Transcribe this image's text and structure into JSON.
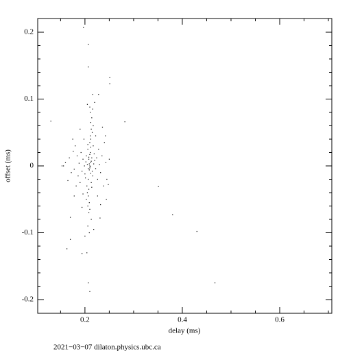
{
  "chart_data": {
    "type": "scatter",
    "x_label": "delay (ms)",
    "y_label": "offset (ms)",
    "footer": "2021−03−07  dilaton.physics.ubc.ca",
    "color": "#000000",
    "xlim": [
      0.103,
      0.707
    ],
    "ylim": [
      -0.2205,
      0.2205
    ],
    "xticks": [
      0.2,
      0.4,
      0.6
    ],
    "yticks": [
      -0.2,
      -0.1,
      0,
      0.1,
      0.2
    ],
    "xminorticks": [
      0.15,
      0.25,
      0.3,
      0.35,
      0.45,
      0.5,
      0.55,
      0.65,
      0.7
    ],
    "yminorticks": [
      -0.18,
      -0.16,
      -0.14,
      -0.12,
      -0.08,
      -0.06,
      -0.04,
      -0.02,
      0.02,
      0.04,
      0.06,
      0.08,
      0.12,
      0.14,
      0.16,
      0.18
    ],
    "x": [
      0.205,
      0.21,
      0.212,
      0.208,
      0.215,
      0.203,
      0.218,
      0.2,
      0.211,
      0.207,
      0.214,
      0.209,
      0.202,
      0.216,
      0.206,
      0.213,
      0.199,
      0.22,
      0.204,
      0.217,
      0.21,
      0.208,
      0.222,
      0.196,
      0.212,
      0.205,
      0.219,
      0.201,
      0.224,
      0.194,
      0.211,
      0.207,
      0.226,
      0.192,
      0.215,
      0.203,
      0.228,
      0.19,
      0.213,
      0.209,
      0.23,
      0.188,
      0.217,
      0.206,
      0.232,
      0.186,
      0.212,
      0.21,
      0.235,
      0.184,
      0.214,
      0.208,
      0.238,
      0.182,
      0.211,
      0.213,
      0.24,
      0.18,
      0.21,
      0.206,
      0.243,
      0.178,
      0.216,
      0.209,
      0.245,
      0.176,
      0.222,
      0.198,
      0.226,
      0.196,
      0.172,
      0.168,
      0.165,
      0.16,
      0.156,
      0.25,
      0.248,
      0.236,
      0.19,
      0.232,
      0.194,
      0.175,
      0.178,
      0.242,
      0.244,
      0.22,
      0.205,
      0.218,
      0.2,
      0.212,
      0.214,
      0.206,
      0.21,
      0.209,
      0.211,
      0.207,
      0.213,
      0.208,
      0.212,
      0.21,
      0.197,
      0.207,
      0.207,
      0.251,
      0.251,
      0.13,
      0.282,
      0.351,
      0.38,
      0.43,
      0.467,
      0.207,
      0.21,
      0.163,
      0.17,
      0.194,
      0.204,
      0.231,
      0.17,
      0.153,
      0.216,
      0.228
    ],
    "values": [
      0.002,
      -0.003,
      0.005,
      0.01,
      -0.008,
      0.015,
      0.003,
      -0.012,
      0.02,
      -0.02,
      0.012,
      -0.006,
      0.006,
      -0.015,
      0.025,
      -0.025,
      0.0,
      0.008,
      -0.03,
      0.03,
      0.035,
      -0.035,
      -0.004,
      0.01,
      0.04,
      -0.04,
      0.018,
      -0.018,
      0.012,
      -0.008,
      0.045,
      -0.045,
      -0.02,
      0.02,
      0.05,
      -0.05,
      0.025,
      -0.025,
      0.055,
      -0.055,
      0.002,
      0.004,
      0.06,
      -0.06,
      -0.01,
      -0.015,
      0.065,
      -0.065,
      0.015,
      0.015,
      0.072,
      -0.07,
      -0.03,
      -0.03,
      0.08,
      -0.08,
      0.035,
      0.03,
      0.088,
      -0.09,
      0.005,
      -0.005,
      0.085,
      -0.1,
      -0.02,
      0.022,
      0.045,
      0.04,
      -0.045,
      -0.042,
      -0.01,
      0.012,
      -0.022,
      0.005,
      0.0,
      0.01,
      -0.028,
      0.058,
      0.055,
      -0.058,
      -0.062,
      0.04,
      -0.045,
      0.045,
      -0.05,
      0.095,
      0.092,
      -0.095,
      -0.105,
      0.028,
      -0.032,
      0.032,
      0.0,
      0.003,
      -0.001,
      -0.004,
      0.007,
      0.013,
      -0.011,
      0.017,
      0.207,
      0.182,
      0.148,
      0.132,
      0.123,
      0.067,
      0.066,
      -0.031,
      -0.073,
      -0.098,
      -0.175,
      -0.175,
      -0.188,
      -0.124,
      -0.11,
      -0.131,
      -0.13,
      -0.078,
      -0.077,
      0.0,
      0.107,
      0.107
    ]
  }
}
